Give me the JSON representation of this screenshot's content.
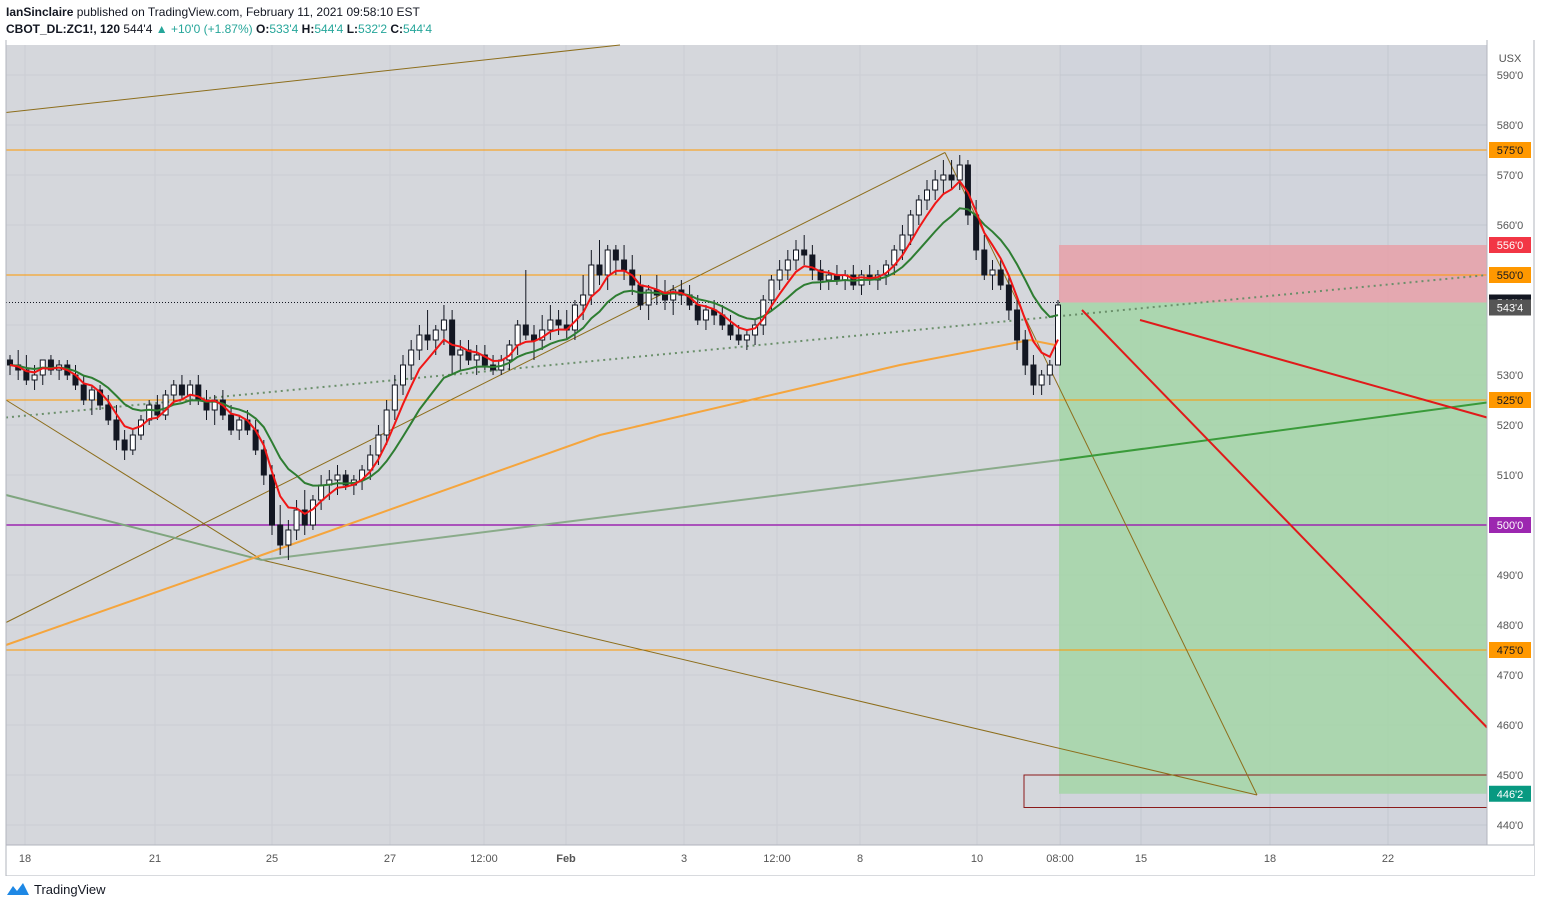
{
  "header": {
    "author": "IanSinclaire",
    "published": "published on TradingView.com, February 11, 2021 09:58:10 EST",
    "symbol": "CBOT_DL:ZC1!, 120",
    "last": "544'4",
    "change": "+10'0 (+1.87%)",
    "o_label": "O:",
    "o": "533'4",
    "h_label": "H:",
    "h": "544'4",
    "l_label": "L:",
    "l": "532'2",
    "c_label": "C:",
    "c": "544'4"
  },
  "footer": {
    "brand": "TradingView"
  },
  "colors": {
    "plot_bg": "#d1d4dc",
    "orange_line": "#ff9800",
    "purple_line": "#9c27b0",
    "red_ema": "#f01616",
    "green_ema": "#2e7d32",
    "sl_zone": "#e8a0a8",
    "tp_zone": "#a5d6a7",
    "olive": "#8d6e1c"
  },
  "chart_data": {
    "type": "candlestick",
    "currency": "USX",
    "ylim": [
      436,
      596
    ],
    "y_ticks": [
      "590'0",
      "580'0",
      "570'0",
      "560'0",
      "530'0",
      "520'0",
      "510'0",
      "490'0",
      "480'0",
      "470'0",
      "460'0",
      "450'0",
      "440'0"
    ],
    "x_ticks": [
      "18",
      "21",
      "25",
      "27",
      "12:00",
      "Feb",
      "3",
      "12:00",
      "8",
      "10",
      "08:00",
      "15",
      "18",
      "22"
    ],
    "horizontal_levels": [
      {
        "label": "575'0",
        "value": 575,
        "color": "#ff9800"
      },
      {
        "label": "550'0",
        "value": 550,
        "color": "#ff9800"
      },
      {
        "label": "525'0",
        "value": 525,
        "color": "#ff9800"
      },
      {
        "label": "500'0",
        "value": 500,
        "color": "#9c27b0"
      },
      {
        "label": "475'0",
        "value": 475,
        "color": "#ff9800"
      }
    ],
    "price_badges": [
      {
        "label": "556'0",
        "value": 556,
        "bg": "#f23645",
        "fg": "#ffffff"
      },
      {
        "label": "544'4",
        "value": 544.5,
        "bg": "#131722",
        "fg": "#ffffff"
      },
      {
        "label": "543'4",
        "value": 543.5,
        "bg": "#555555",
        "fg": "#ffffff"
      },
      {
        "label": "446'2",
        "value": 446.25,
        "bg": "#089981",
        "fg": "#ffffff"
      }
    ],
    "candles": [
      [
        533,
        534,
        530,
        532
      ],
      [
        532,
        535,
        529,
        531
      ],
      [
        531,
        534,
        528,
        529
      ],
      [
        529,
        532,
        527,
        530
      ],
      [
        530,
        533,
        528,
        533
      ],
      [
        533,
        534,
        530,
        531
      ],
      [
        531,
        533,
        529,
        532
      ],
      [
        532,
        533,
        529,
        530
      ],
      [
        530,
        532,
        527,
        528
      ],
      [
        528,
        530,
        524,
        525
      ],
      [
        525,
        528,
        522,
        527
      ],
      [
        527,
        528,
        523,
        524
      ],
      [
        524,
        526,
        520,
        521
      ],
      [
        521,
        524,
        515,
        517
      ],
      [
        517,
        519,
        513,
        515
      ],
      [
        515,
        519,
        514,
        518
      ],
      [
        518,
        522,
        517,
        521
      ],
      [
        521,
        525,
        520,
        524
      ],
      [
        524,
        526,
        521,
        522
      ],
      [
        522,
        527,
        521,
        526
      ],
      [
        526,
        529,
        524,
        528
      ],
      [
        528,
        530,
        525,
        526
      ],
      [
        526,
        529,
        524,
        528
      ],
      [
        528,
        530,
        524,
        525
      ],
      [
        525,
        527,
        521,
        523
      ],
      [
        523,
        526,
        520,
        525
      ],
      [
        525,
        527,
        521,
        522
      ],
      [
        522,
        524,
        518,
        519
      ],
      [
        519,
        522,
        517,
        521
      ],
      [
        521,
        523,
        518,
        519
      ],
      [
        519,
        521,
        514,
        515
      ],
      [
        515,
        517,
        508,
        510
      ],
      [
        510,
        512,
        498,
        500
      ],
      [
        500,
        504,
        494,
        496
      ],
      [
        496,
        501,
        493,
        499
      ],
      [
        499,
        505,
        497,
        503
      ],
      [
        503,
        507,
        498,
        500
      ],
      [
        500,
        506,
        499,
        505
      ],
      [
        505,
        510,
        503,
        508
      ],
      [
        508,
        511,
        505,
        509
      ],
      [
        509,
        512,
        506,
        510
      ],
      [
        510,
        511,
        507,
        508
      ],
      [
        508,
        510,
        506,
        509
      ],
      [
        509,
        512,
        507,
        511
      ],
      [
        511,
        516,
        509,
        514
      ],
      [
        514,
        520,
        512,
        518
      ],
      [
        518,
        525,
        516,
        523
      ],
      [
        523,
        530,
        521,
        528
      ],
      [
        528,
        534,
        526,
        532
      ],
      [
        532,
        537,
        529,
        535
      ],
      [
        535,
        540,
        533,
        538
      ],
      [
        538,
        543,
        535,
        537
      ],
      [
        537,
        540,
        534,
        539
      ],
      [
        539,
        544,
        536,
        541
      ],
      [
        541,
        543,
        530,
        534
      ],
      [
        534,
        537,
        531,
        535
      ],
      [
        535,
        537,
        532,
        533
      ],
      [
        533,
        536,
        530,
        534
      ],
      [
        534,
        536,
        531,
        532
      ],
      [
        532,
        534,
        530,
        531
      ],
      [
        531,
        534,
        530,
        533
      ],
      [
        533,
        537,
        531,
        536
      ],
      [
        536,
        541,
        534,
        540
      ],
      [
        540,
        551,
        537,
        538
      ],
      [
        538,
        540,
        533,
        537
      ],
      [
        537,
        542,
        535,
        539
      ],
      [
        539,
        544,
        537,
        541
      ],
      [
        541,
        543,
        538,
        540
      ],
      [
        540,
        543,
        537,
        539
      ],
      [
        539,
        545,
        537,
        544
      ],
      [
        544,
        550,
        541,
        546
      ],
      [
        546,
        555,
        544,
        552
      ],
      [
        552,
        557,
        548,
        550
      ],
      [
        550,
        556,
        547,
        555
      ],
      [
        555,
        556,
        550,
        553
      ],
      [
        553,
        556,
        549,
        551
      ],
      [
        551,
        554,
        546,
        548
      ],
      [
        548,
        550,
        543,
        544
      ],
      [
        544,
        548,
        541,
        547
      ],
      [
        547,
        550,
        544,
        546
      ],
      [
        546,
        549,
        543,
        545
      ],
      [
        545,
        548,
        542,
        547
      ],
      [
        547,
        549,
        544,
        546
      ],
      [
        546,
        548,
        543,
        544
      ],
      [
        544,
        546,
        540,
        541
      ],
      [
        541,
        544,
        539,
        543
      ],
      [
        543,
        545,
        540,
        542
      ],
      [
        542,
        544,
        539,
        540
      ],
      [
        540,
        542,
        537,
        538
      ],
      [
        538,
        540,
        536,
        537
      ],
      [
        537,
        539,
        535,
        538
      ],
      [
        538,
        541,
        536,
        540
      ],
      [
        540,
        546,
        538,
        545
      ],
      [
        545,
        550,
        543,
        549
      ],
      [
        549,
        553,
        547,
        551
      ],
      [
        551,
        555,
        549,
        553
      ],
      [
        553,
        557,
        551,
        555
      ],
      [
        555,
        558,
        552,
        554
      ],
      [
        554,
        556,
        549,
        551
      ],
      [
        551,
        553,
        547,
        549
      ],
      [
        549,
        551,
        547,
        550
      ],
      [
        550,
        552,
        548,
        549
      ],
      [
        549,
        551,
        547,
        550
      ],
      [
        550,
        552,
        547,
        548
      ],
      [
        548,
        551,
        546,
        550
      ],
      [
        550,
        552,
        548,
        549
      ],
      [
        549,
        551,
        547,
        550
      ],
      [
        550,
        553,
        548,
        552
      ],
      [
        552,
        556,
        550,
        555
      ],
      [
        555,
        560,
        553,
        558
      ],
      [
        558,
        563,
        556,
        562
      ],
      [
        562,
        566,
        560,
        565
      ],
      [
        565,
        569,
        563,
        567
      ],
      [
        567,
        571,
        565,
        569
      ],
      [
        569,
        573,
        566,
        570
      ],
      [
        570,
        573,
        567,
        569
      ],
      [
        569,
        574,
        567,
        572
      ],
      [
        572,
        573,
        560,
        562
      ],
      [
        562,
        565,
        553,
        555
      ],
      [
        555,
        558,
        549,
        550
      ],
      [
        550,
        553,
        547,
        551
      ],
      [
        551,
        553,
        547,
        548
      ],
      [
        548,
        550,
        541,
        543
      ],
      [
        543,
        545,
        535,
        537
      ],
      [
        537,
        539,
        530,
        532
      ],
      [
        532,
        534,
        526,
        528
      ],
      [
        528,
        531,
        526,
        530
      ],
      [
        530,
        533,
        528,
        532
      ],
      [
        532,
        545,
        532,
        544
      ]
    ],
    "trade": {
      "entry": 544.5,
      "stop": 556,
      "target": 446.25
    }
  }
}
